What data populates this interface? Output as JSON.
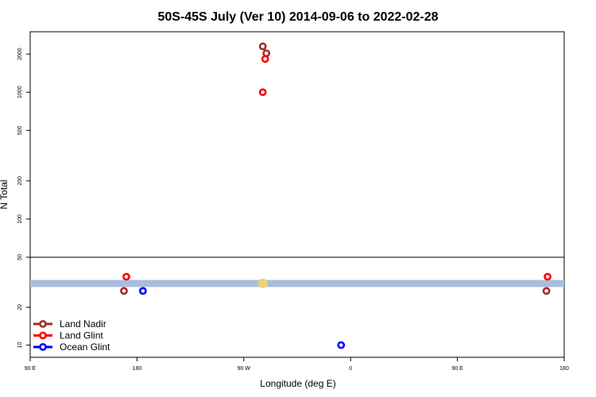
{
  "chart_data": {
    "type": "scatter",
    "title": "50S-45S July (Ver 10)   2014-09-06 to 2022-02-28",
    "xlabel": "Longitude (deg E)",
    "ylabel": "N Total",
    "x_axis": {
      "range_deg_east": [
        90,
        540
      ],
      "ticks": [
        {
          "value": 90,
          "label": "90 E"
        },
        {
          "value": 180,
          "label": "180"
        },
        {
          "value": 270,
          "label": "90 W"
        },
        {
          "value": 360,
          "label": "0"
        },
        {
          "value": 450,
          "label": "90 E"
        },
        {
          "value": 540,
          "label": "180"
        }
      ]
    },
    "y_axis": {
      "scale": "log",
      "upper_range": [
        50,
        3000
      ],
      "lower_range": [
        8,
        50
      ],
      "upper_ticks": [
        {
          "value": 100,
          "label": "100"
        },
        {
          "value": 200,
          "label": "200"
        },
        {
          "value": 500,
          "label": "500"
        },
        {
          "value": 1000,
          "label": "1000"
        },
        {
          "value": 2000,
          "label": "2000"
        }
      ],
      "lower_ticks": [
        {
          "value": 10,
          "label": "10"
        },
        {
          "value": 20,
          "label": "20"
        },
        {
          "value": 50,
          "label": "50"
        }
      ]
    },
    "band": {
      "y_low": 29,
      "y_high": 33,
      "color": "#a9bedd"
    },
    "highlight_points": [
      {
        "x": 286,
        "y": 31,
        "color": "#f2d36b"
      }
    ],
    "series": [
      {
        "name": "Land Nadir",
        "color": "#a52a2a",
        "points": [
          {
            "x": 286,
            "y": 2300
          },
          {
            "x": 289,
            "y": 2030
          },
          {
            "x": 169,
            "y": 27
          },
          {
            "x": 525,
            "y": 27
          }
        ]
      },
      {
        "name": "Land Glint",
        "color": "#ff0000",
        "points": [
          {
            "x": 288,
            "y": 1830
          },
          {
            "x": 286,
            "y": 1000
          },
          {
            "x": 171,
            "y": 35
          },
          {
            "x": 526,
            "y": 35
          }
        ]
      },
      {
        "name": "Ocean Glint",
        "color": "#0000ff",
        "points": [
          {
            "x": 185,
            "y": 27
          },
          {
            "x": 352,
            "y": 10
          }
        ]
      }
    ],
    "legend_position": "bottom-left"
  }
}
